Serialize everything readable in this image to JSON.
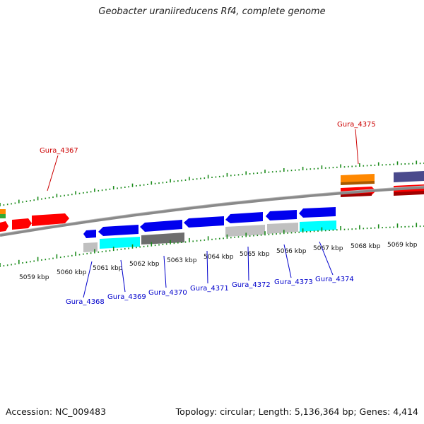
{
  "title": "Geobacter uraniireducens Rf4, complete genome",
  "footer": {
    "accession": "Accession: NC_009483",
    "stats": "Topology: circular; Length: 5,136,364 bp; Genes: 4,414"
  },
  "colors": {
    "backbone": "#808080",
    "tick": "#1a8a1a",
    "label_red": "#cc0000",
    "label_blue": "#0000cc"
  },
  "kbp_ticks": [
    {
      "label": "5059 kbp"
    },
    {
      "label": "5060 kbp"
    },
    {
      "label": "5061 kbp"
    },
    {
      "label": "5062 kbp"
    },
    {
      "label": "5063 kbp"
    },
    {
      "label": "5064 kbp"
    },
    {
      "label": "5065 kbp"
    },
    {
      "label": "5066 kbp"
    },
    {
      "label": "5067 kbp"
    },
    {
      "label": "5068 kbp"
    },
    {
      "label": "5069 kbp"
    }
  ],
  "gene_labels": [
    {
      "id": "Gura_4367",
      "strand": "plus"
    },
    {
      "id": "Gura_4375",
      "strand": "plus"
    },
    {
      "id": "Gura_4368",
      "strand": "minus"
    },
    {
      "id": "Gura_4369",
      "strand": "minus"
    },
    {
      "id": "Gura_4370",
      "strand": "minus"
    },
    {
      "id": "Gura_4371",
      "strand": "minus"
    },
    {
      "id": "Gura_4372",
      "strand": "minus"
    },
    {
      "id": "Gura_4373",
      "strand": "minus"
    },
    {
      "id": "Gura_4374",
      "strand": "minus"
    }
  ],
  "legend_colors": {
    "red": "#ff0000",
    "blue": "#0000ee",
    "cyan": "#00ffff",
    "light_gray": "#c0c0c0",
    "dark_gray": "#6e6e6e",
    "orange": "#ff8800",
    "slate": "#4a4a8c",
    "green": "#33aa33"
  }
}
